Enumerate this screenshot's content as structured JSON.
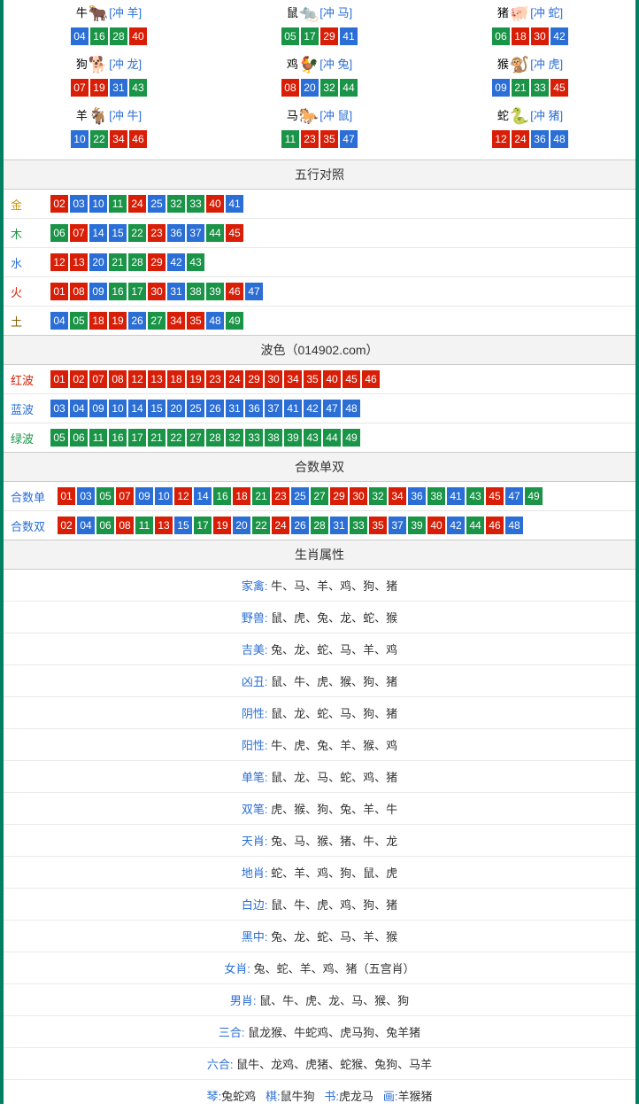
{
  "colors": {
    "red": "#d81e06",
    "blue": "#2a6ed6",
    "green": "#1a9447",
    "border": "#008060",
    "section_bg": "#f3f3f3",
    "text": "#333333"
  },
  "zodiac_icons": {
    "ox": {
      "emoji": "🐂",
      "color": "#d81e06"
    },
    "rat": {
      "emoji": "🐀",
      "color": "#6bb5d6"
    },
    "pig": {
      "emoji": "🐖",
      "color": "#e88fa0"
    },
    "dog": {
      "emoji": "🐕",
      "color": "#6bb5d6"
    },
    "rooster": {
      "emoji": "🐓",
      "color": "#e0a020"
    },
    "monkey": {
      "emoji": "🐒",
      "color": "#d88020"
    },
    "goat": {
      "emoji": "🐐",
      "color": "#e0b040"
    },
    "horse": {
      "emoji": "🐎",
      "color": "#d81e06"
    },
    "snake": {
      "emoji": "🐍",
      "color": "#1a9447"
    }
  },
  "zodiac_grid": [
    {
      "name": "牛",
      "icon": "ox",
      "clash": "[冲 羊]",
      "balls": [
        {
          "n": "04",
          "c": "blue"
        },
        {
          "n": "16",
          "c": "green"
        },
        {
          "n": "28",
          "c": "green"
        },
        {
          "n": "40",
          "c": "red"
        }
      ]
    },
    {
      "name": "鼠",
      "icon": "rat",
      "clash": "[冲 马]",
      "balls": [
        {
          "n": "05",
          "c": "green"
        },
        {
          "n": "17",
          "c": "green"
        },
        {
          "n": "29",
          "c": "red"
        },
        {
          "n": "41",
          "c": "blue"
        }
      ]
    },
    {
      "name": "猪",
      "icon": "pig",
      "clash": "[冲 蛇]",
      "balls": [
        {
          "n": "06",
          "c": "green"
        },
        {
          "n": "18",
          "c": "red"
        },
        {
          "n": "30",
          "c": "red"
        },
        {
          "n": "42",
          "c": "blue"
        }
      ]
    },
    {
      "name": "狗",
      "icon": "dog",
      "clash": "[冲 龙]",
      "balls": [
        {
          "n": "07",
          "c": "red"
        },
        {
          "n": "19",
          "c": "red"
        },
        {
          "n": "31",
          "c": "blue"
        },
        {
          "n": "43",
          "c": "green"
        }
      ]
    },
    {
      "name": "鸡",
      "icon": "rooster",
      "clash": "[冲 兔]",
      "balls": [
        {
          "n": "08",
          "c": "red"
        },
        {
          "n": "20",
          "c": "blue"
        },
        {
          "n": "32",
          "c": "green"
        },
        {
          "n": "44",
          "c": "green"
        }
      ]
    },
    {
      "name": "猴",
      "icon": "monkey",
      "clash": "[冲 虎]",
      "balls": [
        {
          "n": "09",
          "c": "blue"
        },
        {
          "n": "21",
          "c": "green"
        },
        {
          "n": "33",
          "c": "green"
        },
        {
          "n": "45",
          "c": "red"
        }
      ]
    },
    {
      "name": "羊",
      "icon": "goat",
      "clash": "[冲 牛]",
      "balls": [
        {
          "n": "10",
          "c": "blue"
        },
        {
          "n": "22",
          "c": "green"
        },
        {
          "n": "34",
          "c": "red"
        },
        {
          "n": "46",
          "c": "red"
        }
      ]
    },
    {
      "name": "马",
      "icon": "horse",
      "clash": "[冲 鼠]",
      "balls": [
        {
          "n": "11",
          "c": "green"
        },
        {
          "n": "23",
          "c": "red"
        },
        {
          "n": "35",
          "c": "red"
        },
        {
          "n": "47",
          "c": "blue"
        }
      ]
    },
    {
      "name": "蛇",
      "icon": "snake",
      "clash": "[冲 猪]",
      "balls": [
        {
          "n": "12",
          "c": "red"
        },
        {
          "n": "24",
          "c": "red"
        },
        {
          "n": "36",
          "c": "blue"
        },
        {
          "n": "48",
          "c": "blue"
        }
      ]
    }
  ],
  "sections": {
    "wuxing_title": "五行对照",
    "bose_title": "波色（014902.com）",
    "heshu_title": "合数单双",
    "shuxing_title": "生肖属性"
  },
  "wuxing": [
    {
      "label": "金",
      "label_class": "lbl-gold",
      "balls": [
        {
          "n": "02",
          "c": "red"
        },
        {
          "n": "03",
          "c": "blue"
        },
        {
          "n": "10",
          "c": "blue"
        },
        {
          "n": "11",
          "c": "green"
        },
        {
          "n": "24",
          "c": "red"
        },
        {
          "n": "25",
          "c": "blue"
        },
        {
          "n": "32",
          "c": "green"
        },
        {
          "n": "33",
          "c": "green"
        },
        {
          "n": "40",
          "c": "red"
        },
        {
          "n": "41",
          "c": "blue"
        }
      ]
    },
    {
      "label": "木",
      "label_class": "lbl-wood",
      "balls": [
        {
          "n": "06",
          "c": "green"
        },
        {
          "n": "07",
          "c": "red"
        },
        {
          "n": "14",
          "c": "blue"
        },
        {
          "n": "15",
          "c": "blue"
        },
        {
          "n": "22",
          "c": "green"
        },
        {
          "n": "23",
          "c": "red"
        },
        {
          "n": "36",
          "c": "blue"
        },
        {
          "n": "37",
          "c": "blue"
        },
        {
          "n": "44",
          "c": "green"
        },
        {
          "n": "45",
          "c": "red"
        }
      ]
    },
    {
      "label": "水",
      "label_class": "lbl-water",
      "balls": [
        {
          "n": "12",
          "c": "red"
        },
        {
          "n": "13",
          "c": "red"
        },
        {
          "n": "20",
          "c": "blue"
        },
        {
          "n": "21",
          "c": "green"
        },
        {
          "n": "28",
          "c": "green"
        },
        {
          "n": "29",
          "c": "red"
        },
        {
          "n": "42",
          "c": "blue"
        },
        {
          "n": "43",
          "c": "green"
        }
      ]
    },
    {
      "label": "火",
      "label_class": "lbl-fire",
      "balls": [
        {
          "n": "01",
          "c": "red"
        },
        {
          "n": "08",
          "c": "red"
        },
        {
          "n": "09",
          "c": "blue"
        },
        {
          "n": "16",
          "c": "green"
        },
        {
          "n": "17",
          "c": "green"
        },
        {
          "n": "30",
          "c": "red"
        },
        {
          "n": "31",
          "c": "blue"
        },
        {
          "n": "38",
          "c": "green"
        },
        {
          "n": "39",
          "c": "green"
        },
        {
          "n": "46",
          "c": "red"
        },
        {
          "n": "47",
          "c": "blue"
        }
      ]
    },
    {
      "label": "土",
      "label_class": "lbl-earth",
      "balls": [
        {
          "n": "04",
          "c": "blue"
        },
        {
          "n": "05",
          "c": "green"
        },
        {
          "n": "18",
          "c": "red"
        },
        {
          "n": "19",
          "c": "red"
        },
        {
          "n": "26",
          "c": "blue"
        },
        {
          "n": "27",
          "c": "green"
        },
        {
          "n": "34",
          "c": "red"
        },
        {
          "n": "35",
          "c": "red"
        },
        {
          "n": "48",
          "c": "blue"
        },
        {
          "n": "49",
          "c": "green"
        }
      ]
    }
  ],
  "bose": [
    {
      "label": "红波",
      "label_class": "lbl-red",
      "balls": [
        {
          "n": "01",
          "c": "red"
        },
        {
          "n": "02",
          "c": "red"
        },
        {
          "n": "07",
          "c": "red"
        },
        {
          "n": "08",
          "c": "red"
        },
        {
          "n": "12",
          "c": "red"
        },
        {
          "n": "13",
          "c": "red"
        },
        {
          "n": "18",
          "c": "red"
        },
        {
          "n": "19",
          "c": "red"
        },
        {
          "n": "23",
          "c": "red"
        },
        {
          "n": "24",
          "c": "red"
        },
        {
          "n": "29",
          "c": "red"
        },
        {
          "n": "30",
          "c": "red"
        },
        {
          "n": "34",
          "c": "red"
        },
        {
          "n": "35",
          "c": "red"
        },
        {
          "n": "40",
          "c": "red"
        },
        {
          "n": "45",
          "c": "red"
        },
        {
          "n": "46",
          "c": "red"
        }
      ]
    },
    {
      "label": "蓝波",
      "label_class": "lbl-blue",
      "balls": [
        {
          "n": "03",
          "c": "blue"
        },
        {
          "n": "04",
          "c": "blue"
        },
        {
          "n": "09",
          "c": "blue"
        },
        {
          "n": "10",
          "c": "blue"
        },
        {
          "n": "14",
          "c": "blue"
        },
        {
          "n": "15",
          "c": "blue"
        },
        {
          "n": "20",
          "c": "blue"
        },
        {
          "n": "25",
          "c": "blue"
        },
        {
          "n": "26",
          "c": "blue"
        },
        {
          "n": "31",
          "c": "blue"
        },
        {
          "n": "36",
          "c": "blue"
        },
        {
          "n": "37",
          "c": "blue"
        },
        {
          "n": "41",
          "c": "blue"
        },
        {
          "n": "42",
          "c": "blue"
        },
        {
          "n": "47",
          "c": "blue"
        },
        {
          "n": "48",
          "c": "blue"
        }
      ]
    },
    {
      "label": "绿波",
      "label_class": "lbl-green",
      "balls": [
        {
          "n": "05",
          "c": "green"
        },
        {
          "n": "06",
          "c": "green"
        },
        {
          "n": "11",
          "c": "green"
        },
        {
          "n": "16",
          "c": "green"
        },
        {
          "n": "17",
          "c": "green"
        },
        {
          "n": "21",
          "c": "green"
        },
        {
          "n": "22",
          "c": "green"
        },
        {
          "n": "27",
          "c": "green"
        },
        {
          "n": "28",
          "c": "green"
        },
        {
          "n": "32",
          "c": "green"
        },
        {
          "n": "33",
          "c": "green"
        },
        {
          "n": "38",
          "c": "green"
        },
        {
          "n": "39",
          "c": "green"
        },
        {
          "n": "43",
          "c": "green"
        },
        {
          "n": "44",
          "c": "green"
        },
        {
          "n": "49",
          "c": "green"
        }
      ]
    }
  ],
  "heshu": [
    {
      "label": "合数单",
      "label_class": "lbl-blue2",
      "balls": [
        {
          "n": "01",
          "c": "red"
        },
        {
          "n": "03",
          "c": "blue"
        },
        {
          "n": "05",
          "c": "green"
        },
        {
          "n": "07",
          "c": "red"
        },
        {
          "n": "09",
          "c": "blue"
        },
        {
          "n": "10",
          "c": "blue"
        },
        {
          "n": "12",
          "c": "red"
        },
        {
          "n": "14",
          "c": "blue"
        },
        {
          "n": "16",
          "c": "green"
        },
        {
          "n": "18",
          "c": "red"
        },
        {
          "n": "21",
          "c": "green"
        },
        {
          "n": "23",
          "c": "red"
        },
        {
          "n": "25",
          "c": "blue"
        },
        {
          "n": "27",
          "c": "green"
        },
        {
          "n": "29",
          "c": "red"
        },
        {
          "n": "30",
          "c": "red"
        },
        {
          "n": "32",
          "c": "green"
        },
        {
          "n": "34",
          "c": "red"
        },
        {
          "n": "36",
          "c": "blue"
        },
        {
          "n": "38",
          "c": "green"
        },
        {
          "n": "41",
          "c": "blue"
        },
        {
          "n": "43",
          "c": "green"
        },
        {
          "n": "45",
          "c": "red"
        },
        {
          "n": "47",
          "c": "blue"
        },
        {
          "n": "49",
          "c": "green"
        }
      ]
    },
    {
      "label": "合数双",
      "label_class": "lbl-blue2",
      "balls": [
        {
          "n": "02",
          "c": "red"
        },
        {
          "n": "04",
          "c": "blue"
        },
        {
          "n": "06",
          "c": "green"
        },
        {
          "n": "08",
          "c": "red"
        },
        {
          "n": "11",
          "c": "green"
        },
        {
          "n": "13",
          "c": "red"
        },
        {
          "n": "15",
          "c": "blue"
        },
        {
          "n": "17",
          "c": "green"
        },
        {
          "n": "19",
          "c": "red"
        },
        {
          "n": "20",
          "c": "blue"
        },
        {
          "n": "22",
          "c": "green"
        },
        {
          "n": "24",
          "c": "red"
        },
        {
          "n": "26",
          "c": "blue"
        },
        {
          "n": "28",
          "c": "green"
        },
        {
          "n": "31",
          "c": "blue"
        },
        {
          "n": "33",
          "c": "green"
        },
        {
          "n": "35",
          "c": "red"
        },
        {
          "n": "37",
          "c": "blue"
        },
        {
          "n": "39",
          "c": "green"
        },
        {
          "n": "40",
          "c": "red"
        },
        {
          "n": "42",
          "c": "blue"
        },
        {
          "n": "44",
          "c": "green"
        },
        {
          "n": "46",
          "c": "red"
        },
        {
          "n": "48",
          "c": "blue"
        }
      ]
    }
  ],
  "shuxing": [
    {
      "label": "家禽: ",
      "value": "牛、马、羊、鸡、狗、猪"
    },
    {
      "label": "野兽: ",
      "value": "鼠、虎、兔、龙、蛇、猴"
    },
    {
      "label": "吉美: ",
      "value": "兔、龙、蛇、马、羊、鸡"
    },
    {
      "label": "凶丑: ",
      "value": "鼠、牛、虎、猴、狗、猪"
    },
    {
      "label": "阴性: ",
      "value": "鼠、龙、蛇、马、狗、猪"
    },
    {
      "label": "阳性: ",
      "value": "牛、虎、兔、羊、猴、鸡"
    },
    {
      "label": "单笔: ",
      "value": "鼠、龙、马、蛇、鸡、猪"
    },
    {
      "label": "双笔: ",
      "value": "虎、猴、狗、兔、羊、牛"
    },
    {
      "label": "天肖: ",
      "value": "兔、马、猴、猪、牛、龙"
    },
    {
      "label": "地肖: ",
      "value": "蛇、羊、鸡、狗、鼠、虎"
    },
    {
      "label": "白边: ",
      "value": "鼠、牛、虎、鸡、狗、猪"
    },
    {
      "label": "黑中: ",
      "value": "兔、龙、蛇、马、羊、猴"
    },
    {
      "label": "女肖: ",
      "value": "兔、蛇、羊、鸡、猪（五宫肖）"
    },
    {
      "label": "男肖: ",
      "value": "鼠、牛、虎、龙、马、猴、狗"
    },
    {
      "label": "三合: ",
      "value": "鼠龙猴、牛蛇鸡、虎马狗、兔羊猪"
    },
    {
      "label": "六合: ",
      "value": "鼠牛、龙鸡、虎猪、蛇猴、兔狗、马羊"
    }
  ],
  "bottom": [
    {
      "k": "琴:",
      "v": "兔蛇鸡"
    },
    {
      "k": "棋:",
      "v": "鼠牛狗"
    },
    {
      "k": "书:",
      "v": "虎龙马"
    },
    {
      "k": "画:",
      "v": "羊猴猪"
    }
  ]
}
